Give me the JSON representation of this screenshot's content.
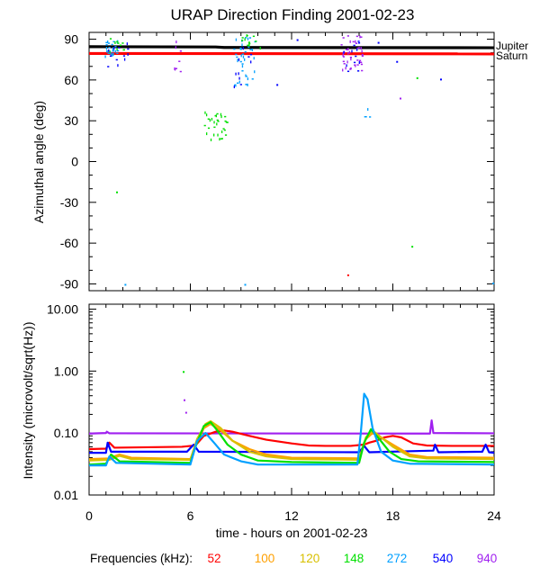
{
  "title": "URAP Direction Finding  2001-02-23",
  "chart_data": [
    {
      "type": "scatter",
      "panel": "top",
      "ylabel": "Azimuthal angle (deg)",
      "ylim": [
        -95,
        95
      ],
      "yticks": [
        90,
        60,
        30,
        0,
        -30,
        -60,
        -90
      ],
      "y_tick_labels": [
        "90",
        "60",
        "30",
        "0",
        "-30",
        "-60",
        "-90"
      ],
      "xlim": [
        0,
        24
      ],
      "reference_lines": [
        {
          "name": "Jupiter",
          "label": "Jupiter",
          "color": "#000000",
          "points": [
            [
              0,
              84.5
            ],
            [
              7.5,
              84.3
            ],
            [
              8,
              83.9
            ],
            [
              24,
              83.7
            ]
          ]
        },
        {
          "name": "Saturn",
          "label": "Saturn",
          "color": "#ff0000",
          "points": [
            [
              0,
              79.5
            ],
            [
              24,
              79.2
            ]
          ]
        }
      ],
      "clusters": [
        {
          "freq": "272",
          "color": "#00a0ff",
          "x": [
            0.9,
            1.7
          ],
          "y": [
            78,
            90
          ],
          "n": 30
        },
        {
          "freq": "540",
          "color": "#0000ff",
          "x": [
            1.0,
            2.6
          ],
          "y": [
            70,
            88
          ],
          "n": 12
        },
        {
          "freq": "148",
          "color": "#00e000",
          "x": [
            1.2,
            2.1
          ],
          "y": [
            80,
            92
          ],
          "n": 10
        },
        {
          "freq": "940",
          "color": "#a020f0",
          "x": [
            5.0,
            5.4
          ],
          "y": [
            66,
            92
          ],
          "n": 8
        },
        {
          "freq": "148",
          "color": "#00e000",
          "x": [
            6.8,
            8.2
          ],
          "y": [
            16,
            38
          ],
          "n": 32
        },
        {
          "freq": "272",
          "color": "#00a0ff",
          "x": [
            8.5,
            9.8
          ],
          "y": [
            55,
            94
          ],
          "n": 38
        },
        {
          "freq": "148",
          "color": "#00e000",
          "x": [
            9.0,
            10.2
          ],
          "y": [
            84,
            94
          ],
          "n": 12
        },
        {
          "freq": "540",
          "color": "#0000ff",
          "x": [
            8.2,
            9.6
          ],
          "y": [
            55,
            85
          ],
          "n": 10
        },
        {
          "freq": "940",
          "color": "#a020f0",
          "x": [
            14.9,
            16.2
          ],
          "y": [
            67,
            94
          ],
          "n": 42
        },
        {
          "freq": "540",
          "color": "#0000ff",
          "x": [
            14.8,
            16.0
          ],
          "y": [
            65,
            90
          ],
          "n": 12
        },
        {
          "freq": "272",
          "color": "#00a0ff",
          "x": [
            16.3,
            16.6
          ],
          "y": [
            24,
            40
          ],
          "n": 4
        }
      ],
      "points": [
        {
          "freq": "148",
          "color": "#00e000",
          "x": 1.6,
          "y": -22
        },
        {
          "freq": "272",
          "color": "#00a0ff",
          "x": 2.1,
          "y": -90
        },
        {
          "freq": "272",
          "color": "#00a0ff",
          "x": 9.2,
          "y": -90
        },
        {
          "freq": "540",
          "color": "#0000ff",
          "x": 11.1,
          "y": 57
        },
        {
          "freq": "540",
          "color": "#0000ff",
          "x": 12.3,
          "y": 90
        },
        {
          "freq": "52",
          "color": "#ff0000",
          "x": 15.3,
          "y": -83
        },
        {
          "freq": "540",
          "color": "#0000ff",
          "x": 17.1,
          "y": 88
        },
        {
          "freq": "540",
          "color": "#0000ff",
          "x": 18.2,
          "y": 74
        },
        {
          "freq": "940",
          "color": "#a020f0",
          "x": 18.4,
          "y": 47
        },
        {
          "freq": "148",
          "color": "#00e000",
          "x": 19.1,
          "y": -62
        },
        {
          "freq": "148",
          "color": "#00e000",
          "x": 19.4,
          "y": 62
        },
        {
          "freq": "540",
          "color": "#0000ff",
          "x": 20.8,
          "y": 61
        },
        {
          "freq": "272",
          "color": "#00a0ff",
          "x": 23.9,
          "y": -89
        }
      ]
    },
    {
      "type": "line",
      "panel": "bottom",
      "ylabel": "Intensity (microvolt/sqrt(Hz))",
      "yscale": "log",
      "ylim": [
        0.01,
        12
      ],
      "yticks": [
        10,
        1,
        0.1,
        0.01
      ],
      "y_tick_labels": [
        "10.00",
        "1.00",
        "0.10",
        "0.01"
      ],
      "xlim": [
        0,
        24
      ],
      "xticks": [
        0,
        6,
        12,
        18,
        24
      ],
      "x_tick_labels": [
        "0",
        "6",
        "12",
        "18",
        "24"
      ],
      "xlabel": "time - hours on 2001-02-23",
      "series": [
        {
          "name": "940",
          "color": "#a020f0",
          "points": [
            [
              0,
              0.098
            ],
            [
              1,
              0.1
            ],
            [
              1.05,
              0.105
            ],
            [
              1.2,
              0.099
            ],
            [
              20.2,
              0.098
            ],
            [
              20.3,
              0.16
            ],
            [
              20.4,
              0.1
            ],
            [
              24,
              0.099
            ]
          ]
        },
        {
          "name": "52",
          "color": "#ff0000",
          "points": [
            [
              0,
              0.055
            ],
            [
              1,
              0.056
            ],
            [
              1.2,
              0.07
            ],
            [
              1.5,
              0.058
            ],
            [
              5.5,
              0.06
            ],
            [
              6.3,
              0.063
            ],
            [
              6.8,
              0.09
            ],
            [
              7.5,
              0.105
            ],
            [
              8,
              0.11
            ],
            [
              8.5,
              0.105
            ],
            [
              9.5,
              0.09
            ],
            [
              10.5,
              0.078
            ],
            [
              12,
              0.068
            ],
            [
              13,
              0.063
            ],
            [
              14,
              0.062
            ],
            [
              15.5,
              0.062
            ],
            [
              16.3,
              0.065
            ],
            [
              16.6,
              0.07
            ],
            [
              17,
              0.075
            ],
            [
              17.5,
              0.085
            ],
            [
              18,
              0.09
            ],
            [
              18.5,
              0.085
            ],
            [
              19.2,
              0.068
            ],
            [
              20,
              0.063
            ],
            [
              21.5,
              0.062
            ],
            [
              24,
              0.062
            ]
          ]
        },
        {
          "name": "540",
          "color": "#0000ff",
          "points": [
            [
              0,
              0.048
            ],
            [
              1,
              0.048
            ],
            [
              1.1,
              0.07
            ],
            [
              1.3,
              0.05
            ],
            [
              5.8,
              0.05
            ],
            [
              6.2,
              0.065
            ],
            [
              6.5,
              0.05
            ],
            [
              16,
              0.049
            ],
            [
              16.3,
              0.062
            ],
            [
              16.6,
              0.049
            ],
            [
              20.4,
              0.052
            ],
            [
              20.5,
              0.065
            ],
            [
              20.7,
              0.049
            ],
            [
              23.3,
              0.05
            ],
            [
              23.5,
              0.065
            ],
            [
              23.7,
              0.049
            ],
            [
              24,
              0.048
            ]
          ]
        },
        {
          "name": "100",
          "color": "#ffa000",
          "points": [
            [
              0,
              0.038
            ],
            [
              1.2,
              0.039
            ],
            [
              1.8,
              0.045
            ],
            [
              2.5,
              0.04
            ],
            [
              6,
              0.038
            ],
            [
              6.4,
              0.07
            ],
            [
              6.8,
              0.12
            ],
            [
              7.2,
              0.14
            ],
            [
              7.8,
              0.11
            ],
            [
              8.5,
              0.075
            ],
            [
              9.5,
              0.055
            ],
            [
              10.5,
              0.045
            ],
            [
              12,
              0.04
            ],
            [
              16,
              0.039
            ],
            [
              16.4,
              0.08
            ],
            [
              16.8,
              0.1
            ],
            [
              17.3,
              0.085
            ],
            [
              18,
              0.065
            ],
            [
              19,
              0.045
            ],
            [
              20,
              0.041
            ],
            [
              24,
              0.04
            ]
          ]
        },
        {
          "name": "120",
          "color": "#d8c000",
          "points": [
            [
              0,
              0.036
            ],
            [
              1.2,
              0.037
            ],
            [
              1.8,
              0.043
            ],
            [
              2.5,
              0.038
            ],
            [
              6,
              0.037
            ],
            [
              6.4,
              0.08
            ],
            [
              6.9,
              0.14
            ],
            [
              7.2,
              0.155
            ],
            [
              7.8,
              0.12
            ],
            [
              8.5,
              0.075
            ],
            [
              9.5,
              0.05
            ],
            [
              10.5,
              0.042
            ],
            [
              12,
              0.038
            ],
            [
              16,
              0.037
            ],
            [
              16.4,
              0.085
            ],
            [
              16.8,
              0.11
            ],
            [
              17.2,
              0.09
            ],
            [
              18,
              0.06
            ],
            [
              19,
              0.042
            ],
            [
              20,
              0.039
            ],
            [
              24,
              0.038
            ]
          ]
        },
        {
          "name": "148",
          "color": "#00e000",
          "points": [
            [
              0,
              0.031
            ],
            [
              1,
              0.032
            ],
            [
              1.3,
              0.045
            ],
            [
              1.8,
              0.035
            ],
            [
              6,
              0.033
            ],
            [
              6.3,
              0.06
            ],
            [
              6.8,
              0.13
            ],
            [
              7.2,
              0.15
            ],
            [
              7.6,
              0.11
            ],
            [
              8.2,
              0.065
            ],
            [
              9,
              0.045
            ],
            [
              10,
              0.036
            ],
            [
              12,
              0.034
            ],
            [
              16,
              0.033
            ],
            [
              16.3,
              0.07
            ],
            [
              16.7,
              0.115
            ],
            [
              17.2,
              0.08
            ],
            [
              17.8,
              0.05
            ],
            [
              18.5,
              0.038
            ],
            [
              19.5,
              0.035
            ],
            [
              24,
              0.034
            ]
          ]
        },
        {
          "name": "272",
          "color": "#00a0ff",
          "points": [
            [
              0,
              0.03
            ],
            [
              1,
              0.03
            ],
            [
              1.2,
              0.042
            ],
            [
              1.6,
              0.033
            ],
            [
              6,
              0.031
            ],
            [
              6.4,
              0.075
            ],
            [
              6.9,
              0.1
            ],
            [
              7.4,
              0.07
            ],
            [
              8,
              0.045
            ],
            [
              9,
              0.035
            ],
            [
              10,
              0.031
            ],
            [
              15.9,
              0.031
            ],
            [
              16.1,
              0.1
            ],
            [
              16.3,
              0.43
            ],
            [
              16.5,
              0.35
            ],
            [
              16.8,
              0.12
            ],
            [
              17.3,
              0.05
            ],
            [
              18,
              0.036
            ],
            [
              19,
              0.032
            ],
            [
              24,
              0.031
            ]
          ]
        }
      ],
      "spikes": [
        {
          "freq": "148",
          "color": "#00e000",
          "x": 5.55,
          "y": 1.0
        },
        {
          "freq": "940",
          "color": "#a020f0",
          "x": 5.6,
          "y": 0.35
        },
        {
          "freq": "940",
          "color": "#a020f0",
          "x": 5.7,
          "y": 0.22
        }
      ]
    }
  ],
  "frequency_legend": {
    "label": "Frequencies (kHz):",
    "items": [
      {
        "label": "52",
        "color": "#ff0000"
      },
      {
        "label": "100",
        "color": "#ffa000"
      },
      {
        "label": "120",
        "color": "#d8c000"
      },
      {
        "label": "148",
        "color": "#00e000"
      },
      {
        "label": "272",
        "color": "#00a0ff"
      },
      {
        "label": "540",
        "color": "#0000ff"
      },
      {
        "label": "940",
        "color": "#a020f0"
      }
    ]
  }
}
